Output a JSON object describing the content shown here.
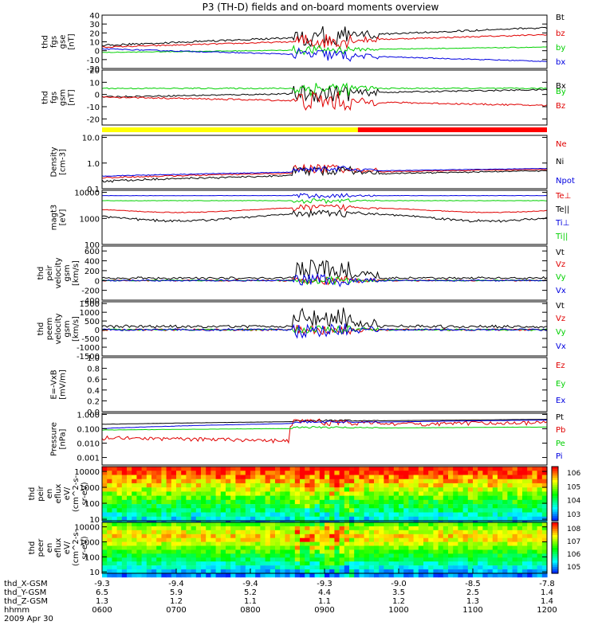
{
  "title": "P3 (TH-D) fields and on-board moments overview",
  "colors": {
    "black": "#000000",
    "red": "#e00000",
    "green": "#00d000",
    "blue": "#0000e0",
    "yellow": "#ffff00",
    "barred": "#ff0000"
  },
  "chart_data": [
    {
      "id": "fgs1",
      "type": "line",
      "ylabel": [
        "thd",
        "fgs",
        "gse",
        "[nT]"
      ],
      "ylim": [
        -20,
        40
      ],
      "ticks": [
        "40",
        "30",
        "20",
        "10",
        "0",
        "-10",
        "-20"
      ],
      "tickvals": [
        40,
        30,
        20,
        10,
        0,
        -10,
        -20
      ],
      "series": [
        {
          "name": "Bt",
          "color": "black"
        },
        {
          "name": "bz",
          "color": "red"
        },
        {
          "name": "by",
          "color": "green"
        },
        {
          "name": "bx",
          "color": "blue"
        }
      ]
    },
    {
      "id": "fgs2",
      "type": "line",
      "ylabel": [
        "thd",
        "fgs",
        "gsm",
        "[nT]"
      ],
      "ylim": [
        -25,
        20
      ],
      "ticks": [
        "20",
        "10",
        "0",
        "-10",
        "-20"
      ],
      "tickvals": [
        20,
        10,
        0,
        -10,
        -20
      ],
      "series": [
        {
          "name": "Bx",
          "color": "black"
        },
        {
          "name": "By",
          "color": "green"
        },
        {
          "name": "Bz",
          "color": "red"
        }
      ]
    },
    {
      "id": "density",
      "type": "line",
      "scale": "log",
      "ylabel": [
        "Density",
        "[cm-3]"
      ],
      "ylim": [
        0.1,
        12
      ],
      "ticks": [
        "10.0",
        "1.0",
        "0.1"
      ],
      "tickvals": [
        10,
        1,
        0.1
      ],
      "series": [
        {
          "name": "Ne",
          "color": "red"
        },
        {
          "name": "Ni",
          "color": "black"
        },
        {
          "name": "Npot",
          "color": "blue"
        }
      ]
    },
    {
      "id": "temp",
      "type": "line",
      "scale": "log",
      "ylabel": [
        "magt3",
        "[eV]"
      ],
      "ylim": [
        100,
        12000
      ],
      "ticks": [
        "10000",
        "1000",
        "100"
      ],
      "tickvals": [
        10000,
        1000,
        100
      ],
      "series": [
        {
          "name": "Te⊥",
          "color": "red"
        },
        {
          "name": "Te||",
          "color": "black"
        },
        {
          "name": "Ti⊥",
          "color": "blue"
        },
        {
          "name": "Ti||",
          "color": "green"
        }
      ]
    },
    {
      "id": "peirvel",
      "type": "line",
      "ylabel": [
        "thd",
        "peir",
        "velocity",
        "gsm",
        "[km/s]"
      ],
      "ylim": [
        -400,
        700
      ],
      "ticks": [
        "600",
        "400",
        "200",
        "0",
        "-200",
        "-400"
      ],
      "tickvals": [
        600,
        400,
        200,
        0,
        -200,
        -400
      ],
      "series": [
        {
          "name": "Vt",
          "color": "black"
        },
        {
          "name": "Vz",
          "color": "red"
        },
        {
          "name": "Vy",
          "color": "green"
        },
        {
          "name": "Vx",
          "color": "blue"
        }
      ]
    },
    {
      "id": "peemvel",
      "type": "line",
      "ylabel": [
        "thd",
        "peem",
        "velocity",
        "gsm",
        "[km/s]"
      ],
      "ylim": [
        -1500,
        1600
      ],
      "ticks": [
        "1500",
        "1000",
        "500",
        "0",
        "-500",
        "-1000",
        "-1500"
      ],
      "tickvals": [
        1500,
        1000,
        500,
        0,
        -500,
        -1000,
        -1500
      ],
      "series": [
        {
          "name": "Vt",
          "color": "black"
        },
        {
          "name": "Vz",
          "color": "red"
        },
        {
          "name": "Vy",
          "color": "green"
        },
        {
          "name": "Vx",
          "color": "blue"
        }
      ]
    },
    {
      "id": "efield",
      "type": "line",
      "ylabel": [
        "E=-VxB",
        "[mV/m]"
      ],
      "ylim": [
        0,
        1
      ],
      "ticks": [
        "1.0",
        "0.8",
        "0.6",
        "0.4",
        "0.2",
        "0.0"
      ],
      "tickvals": [
        1,
        0.8,
        0.6,
        0.4,
        0.2,
        0
      ],
      "series": [
        {
          "name": "Ez",
          "color": "red"
        },
        {
          "name": "Ey",
          "color": "green"
        },
        {
          "name": "Ex",
          "color": "blue"
        }
      ]
    },
    {
      "id": "pressure",
      "type": "line",
      "scale": "log",
      "ylabel": [
        "Pressure",
        "[nPa]"
      ],
      "ylim": [
        0.0003,
        1.2
      ],
      "ticks": [
        "1.000",
        "0.100",
        "0.010",
        "0.001"
      ],
      "tickvals": [
        1,
        0.1,
        0.01,
        0.001
      ],
      "series": [
        {
          "name": "Pt",
          "color": "black"
        },
        {
          "name": "Pb",
          "color": "red"
        },
        {
          "name": "Pe",
          "color": "green"
        },
        {
          "name": "Pi",
          "color": "blue"
        }
      ]
    },
    {
      "id": "peirspec",
      "type": "heatmap",
      "scale": "log",
      "ylabel": [
        "thd",
        "peir",
        "en",
        "eflux",
        "eV/",
        "(cm^2-s-",
        "sr-eV)"
      ],
      "ylim": [
        8,
        20000
      ],
      "ticks": [
        "10000",
        "1000",
        "100",
        "10"
      ],
      "tickvals": [
        10000,
        1000,
        100,
        10
      ],
      "colorbar": [
        "10^6",
        "10^5",
        "10^4",
        "10^3"
      ]
    },
    {
      "id": "peerspec",
      "type": "heatmap",
      "scale": "log",
      "ylabel": [
        "thd",
        "peer",
        "en",
        "eflux",
        "eV/",
        "(cm^2-s-",
        "sr-eV)"
      ],
      "ylim": [
        8,
        20000
      ],
      "ticks": [
        "10000",
        "1000",
        "100",
        "10"
      ],
      "tickvals": [
        10000,
        1000,
        100,
        10
      ],
      "colorbar": [
        "10^8",
        "10^7",
        "10^6",
        "10^5"
      ]
    }
  ],
  "xaxis": {
    "rows": [
      {
        "label": "thd_X-GSM",
        "values": [
          "-9.3",
          "-9.4",
          "-9.4",
          "-9.3",
          "-9.0",
          "-8.5",
          "-7.8"
        ]
      },
      {
        "label": "thd_Y-GSM",
        "values": [
          "6.5",
          "5.9",
          "5.2",
          "4.4",
          "3.5",
          "2.5",
          "1.4"
        ]
      },
      {
        "label": "thd_Z-GSM",
        "values": [
          "1.3",
          "1.2",
          "1.1",
          "1.1",
          "1.2",
          "1.3",
          "1.4"
        ]
      },
      {
        "label": "hhmm",
        "values": [
          "0600",
          "0700",
          "0800",
          "0900",
          "1000",
          "1100",
          "1200"
        ]
      }
    ],
    "date": "2009 Apr 30"
  },
  "mode_bar": {
    "yellow_until": 0.575
  }
}
